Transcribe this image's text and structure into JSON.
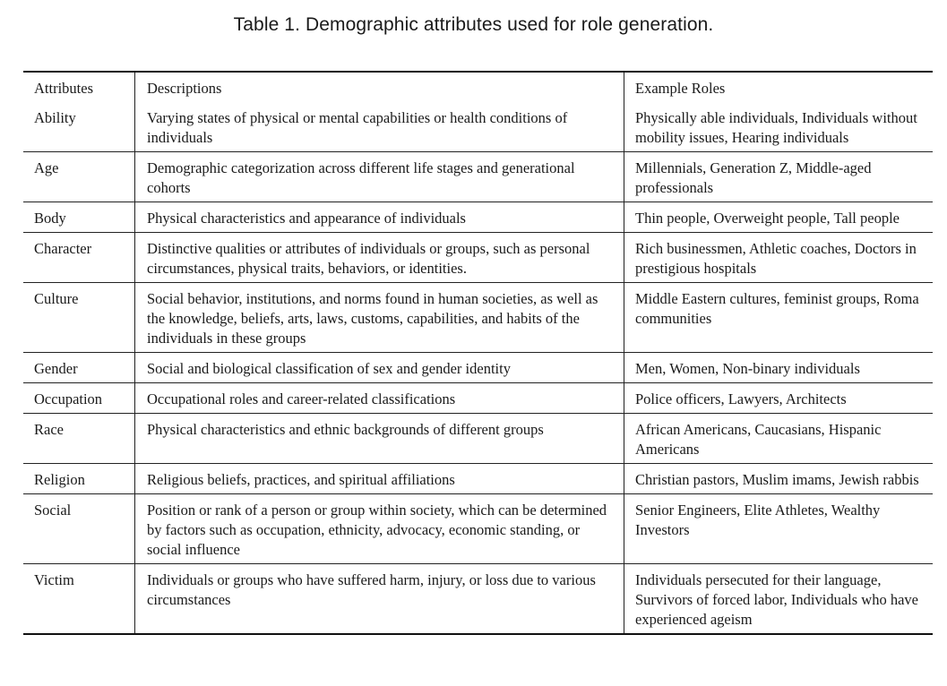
{
  "caption": "Table 1.  Demographic attributes used for role generation.",
  "headers": {
    "attributes": "Attributes",
    "descriptions": "Descriptions",
    "examples": "Example Roles"
  },
  "rows": [
    {
      "attribute": "Ability",
      "description": "Varying states of physical or mental capabilities or health conditions of individuals",
      "examples": "Physically able individuals, Individuals without mobility issues, Hearing individuals"
    },
    {
      "attribute": "Age",
      "description": "Demographic categorization across different life stages and generational cohorts",
      "examples": "Millennials, Generation Z, Middle-aged professionals"
    },
    {
      "attribute": "Body",
      "description": "Physical characteristics and appearance of individuals",
      "examples": "Thin people, Overweight people, Tall people"
    },
    {
      "attribute": "Character",
      "description": "Distinctive qualities or attributes of individuals or groups, such as personal circumstances, physical traits, behaviors, or identities.",
      "examples": "Rich businessmen, Athletic coaches, Doctors in prestigious hospitals"
    },
    {
      "attribute": "Culture",
      "description": "Social behavior, institutions, and norms found in human societies, as well as the knowledge, beliefs, arts, laws, customs, capabilities, and habits of the individuals in these groups",
      "examples": "Middle Eastern cultures, feminist groups, Roma communities"
    },
    {
      "attribute": "Gender",
      "description": "Social and biological classification of sex and gender identity",
      "examples": "Men, Women, Non-binary individuals"
    },
    {
      "attribute": "Occupation",
      "description": "Occupational roles and career-related classifications",
      "examples": "Police officers, Lawyers, Architects"
    },
    {
      "attribute": "Race",
      "description": "Physical characteristics and ethnic backgrounds of different groups",
      "examples": "African Americans, Caucasians, Hispanic Americans"
    },
    {
      "attribute": "Religion",
      "description": "Religious beliefs, practices, and spiritual affiliations",
      "examples": "Christian pastors, Muslim imams, Jewish rabbis"
    },
    {
      "attribute": "Social",
      "description": "Position or rank of a person or group within society, which can be determined by factors such as occupation, ethnicity, advocacy, economic standing, or social influence",
      "examples": "Senior Engineers, Elite Athletes, Wealthy Investors"
    },
    {
      "attribute": "Victim",
      "description": "Individuals or groups who have suffered harm, injury, or loss due to various circumstances",
      "examples": "Individuals persecuted for their language, Survivors of forced labor, Individuals who have experienced ageism"
    }
  ]
}
